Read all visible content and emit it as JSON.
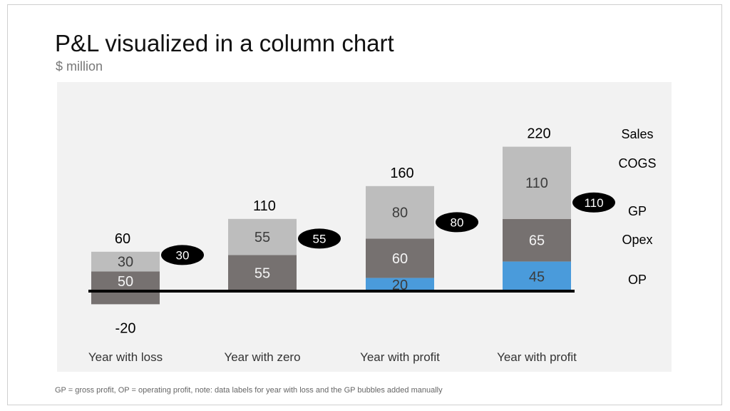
{
  "title": "P&L visualized in a column chart",
  "subtitle": "$ million",
  "footnote": "GP = gross profit, OP = operating profit, note: data labels for year with loss  and the GP bubbles added manually",
  "colors": {
    "cogs": "#bdbdbd",
    "opex": "#767170",
    "op": "#4a9bdb",
    "baseline": "#000000",
    "bubble": "#000000",
    "plot_background": "#f2f2f2"
  },
  "chart_data": {
    "type": "bar",
    "stacked": true,
    "title": "P&L visualized in a column chart",
    "subtitle": "$ million",
    "categories": [
      "Year with loss",
      "Year with zero",
      "Year with profit",
      "Year with profit"
    ],
    "series": [
      {
        "name": "OP",
        "values": [
          -20,
          0,
          20,
          45
        ],
        "labels": [
          "-20",
          "",
          "20",
          "45"
        ]
      },
      {
        "name": "Opex",
        "values": [
          50,
          55,
          60,
          65
        ],
        "labels": [
          "50",
          "55",
          "60",
          "65"
        ]
      },
      {
        "name": "COGS",
        "values": [
          30,
          55,
          80,
          110
        ],
        "labels": [
          "30",
          "55",
          "80",
          "110"
        ]
      }
    ],
    "totals": {
      "name": "Sales",
      "values": [
        60,
        110,
        160,
        220
      ],
      "labels": [
        "60",
        "110",
        "160",
        "220"
      ]
    },
    "gp_bubbles": {
      "name": "GP",
      "values": [
        30,
        55,
        80,
        110
      ],
      "labels": [
        "30",
        "55",
        "80",
        "110"
      ]
    },
    "legend": [
      "Sales",
      "COGS",
      "GP",
      "Opex",
      "OP"
    ],
    "legend_placement": "right",
    "ylim": [
      -20,
      220
    ],
    "grid": false,
    "xlabel": "",
    "ylabel": ""
  }
}
